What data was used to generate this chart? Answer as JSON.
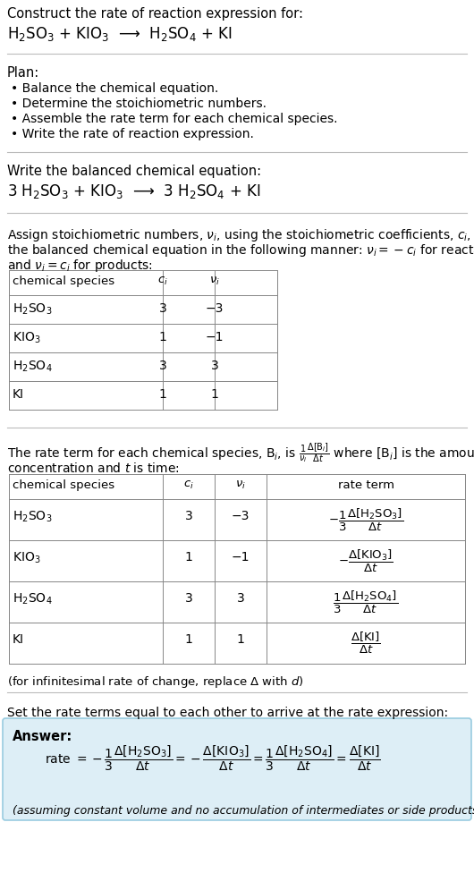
{
  "bg_color": "#ffffff",
  "text_color": "#000000",
  "answer_bg": "#ddeef6",
  "section1_title": "Construct the rate of reaction expression for:",
  "section1_reaction": "H$_2$SO$_3$ + KIO$_3$  ⟶  H$_2$SO$_4$ + KI",
  "plan_title": "Plan:",
  "plan_items": [
    "• Balance the chemical equation.",
    "• Determine the stoichiometric numbers.",
    "• Assemble the rate term for each chemical species.",
    "• Write the rate of reaction expression."
  ],
  "balanced_title": "Write the balanced chemical equation:",
  "balanced_eq": "3 H$_2$SO$_3$ + KIO$_3$  ⟶  3 H$_2$SO$_4$ + KI",
  "assign_text1": "Assign stoichiometric numbers, $\\nu_i$, using the stoichiometric coefficients, $c_i$, from",
  "assign_text2": "the balanced chemical equation in the following manner: $\\nu_i = -c_i$ for reactants",
  "assign_text3": "and $\\nu_i = c_i$ for products:",
  "table1_headers": [
    "chemical species",
    "$c_i$",
    "$\\nu_i$"
  ],
  "table1_rows": [
    [
      "H$_2$SO$_3$",
      "3",
      "−3"
    ],
    [
      "KIO$_3$",
      "1",
      "−1"
    ],
    [
      "H$_2$SO$_4$",
      "3",
      "3"
    ],
    [
      "KI",
      "1",
      "1"
    ]
  ],
  "rate_text1": "The rate term for each chemical species, B$_i$, is $\\frac{1}{\\nu_i}\\frac{\\Delta[\\mathrm{B}_i]}{\\Delta t}$ where [B$_i$] is the amount",
  "rate_text2": "concentration and $t$ is time:",
  "table2_headers": [
    "chemical species",
    "$c_i$",
    "$\\nu_i$",
    "rate term"
  ],
  "table2_rows": [
    [
      "H$_2$SO$_3$",
      "3",
      "−3",
      "$-\\dfrac{1}{3}\\dfrac{\\Delta[\\mathrm{H_2SO_3}]}{\\Delta t}$"
    ],
    [
      "KIO$_3$",
      "1",
      "−1",
      "$-\\dfrac{\\Delta[\\mathrm{KIO_3}]}{\\Delta t}$"
    ],
    [
      "H$_2$SO$_4$",
      "3",
      "3",
      "$\\dfrac{1}{3}\\dfrac{\\Delta[\\mathrm{H_2SO_4}]}{\\Delta t}$"
    ],
    [
      "KI",
      "1",
      "1",
      "$\\dfrac{\\Delta[\\mathrm{KI}]}{\\Delta t}$"
    ]
  ],
  "footnote": "(for infinitesimal rate of change, replace Δ with $d$)",
  "set_rate_text": "Set the rate terms equal to each other to arrive at the rate expression:",
  "answer_label": "Answer:",
  "answer_rate": "rate $= -\\dfrac{1}{3}\\dfrac{\\Delta[\\mathrm{H_2SO_3}]}{\\Delta t} = -\\dfrac{\\Delta[\\mathrm{KIO_3}]}{\\Delta t} = \\dfrac{1}{3}\\dfrac{\\Delta[\\mathrm{H_2SO_4}]}{\\Delta t} = \\dfrac{\\Delta[\\mathrm{KI}]}{\\Delta t}$",
  "answer_footnote": "(assuming constant volume and no accumulation of intermediates or side products)"
}
